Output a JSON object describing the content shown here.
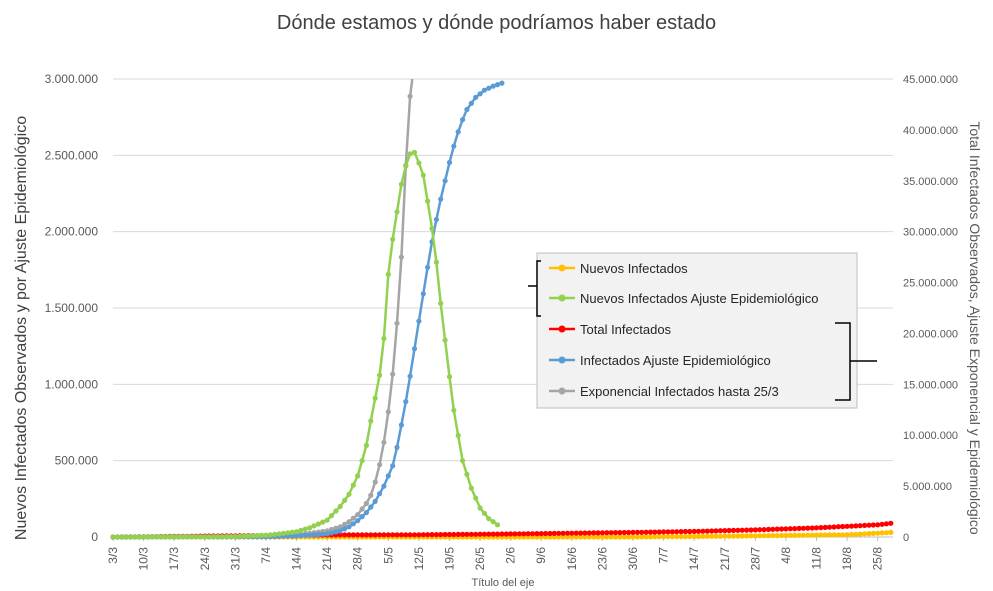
{
  "chart_data": {
    "type": "line",
    "title": "Dónde estamos y dónde podríamos haber estado",
    "xlabel": "Título del eje",
    "ylabel_left": "Nuevos Infectados Observados y por Ajuste Epidemiológico",
    "ylabel_right": "Total Infectados Observados, Ajuste Exponencial y Epidemiológico",
    "x_ticks": [
      "3/3",
      "10/3",
      "17/3",
      "24/3",
      "31/3",
      "7/4",
      "14/4",
      "21/4",
      "28/4",
      "5/5",
      "12/5",
      "19/5",
      "26/5",
      "2/6",
      "9/6",
      "16/6",
      "23/6",
      "30/6",
      "7/7",
      "14/7",
      "21/7",
      "28/7",
      "4/8",
      "11/8",
      "18/8",
      "25/8"
    ],
    "x_start": "3/3",
    "ylim_left": [
      0,
      3000000
    ],
    "ylim_right": [
      0,
      45000000
    ],
    "yticks_left": [
      "0",
      "500.000",
      "1.000.000",
      "1.500.000",
      "2.000.000",
      "2.500.000",
      "3.000.000"
    ],
    "yticks_right": [
      "0",
      "5.000.000",
      "10.000.000",
      "15.000.000",
      "20.000.000",
      "25.000.000",
      "30.000.000",
      "35.000.000",
      "40.000.000",
      "45.000.000"
    ],
    "grid": true,
    "legend_position": "center-right",
    "series": [
      {
        "name": "Nuevos Infectados",
        "axis": "left",
        "color": "#FFC000",
        "points": [
          [
            "3/3",
            0
          ],
          [
            "7/4",
            0
          ],
          [
            "21/4",
            0
          ],
          [
            "12/5",
            0
          ],
          [
            "2/6",
            0
          ],
          [
            "30/6",
            0
          ],
          [
            "21/7",
            5000
          ],
          [
            "4/8",
            10000
          ],
          [
            "18/8",
            15000
          ],
          [
            "25/8",
            25000
          ],
          [
            "28/8",
            30000
          ]
        ]
      },
      {
        "name": "Nuevos Infectados Ajuste Epidemiológico",
        "axis": "left",
        "color": "#92D050",
        "points": [
          [
            "3/3",
            0
          ],
          [
            "24/3",
            1000
          ],
          [
            "31/3",
            3000
          ],
          [
            "7/4",
            12000
          ],
          [
            "10/4",
            20000
          ],
          [
            "14/4",
            35000
          ],
          [
            "17/4",
            60000
          ],
          [
            "21/4",
            110000
          ],
          [
            "24/4",
            200000
          ],
          [
            "26/4",
            280000
          ],
          [
            "28/4",
            400000
          ],
          [
            "30/4",
            600000
          ],
          [
            "1/5",
            760000
          ],
          [
            "3/5",
            1060000
          ],
          [
            "4/5",
            1300000
          ],
          [
            "5/5",
            1720000
          ],
          [
            "6/5",
            1950000
          ],
          [
            "7/5",
            2130000
          ],
          [
            "8/5",
            2310000
          ],
          [
            "9/5",
            2430000
          ],
          [
            "10/5",
            2510000
          ],
          [
            "11/5",
            2520000
          ],
          [
            "12/5",
            2450000
          ],
          [
            "13/5",
            2370000
          ],
          [
            "14/5",
            2200000
          ],
          [
            "15/5",
            2020000
          ],
          [
            "16/5",
            1800000
          ],
          [
            "17/5",
            1530000
          ],
          [
            "19/5",
            1050000
          ],
          [
            "20/5",
            830000
          ],
          [
            "22/5",
            500000
          ],
          [
            "24/5",
            320000
          ],
          [
            "26/5",
            190000
          ],
          [
            "28/5",
            120000
          ],
          [
            "30/5",
            80000
          ]
        ]
      },
      {
        "name": "Total Infectados",
        "axis": "right",
        "color": "#FF0000",
        "points": [
          [
            "3/3",
            0
          ],
          [
            "7/4",
            150000
          ],
          [
            "21/4",
            200000
          ],
          [
            "12/5",
            220000
          ],
          [
            "2/6",
            300000
          ],
          [
            "30/6",
            450000
          ],
          [
            "14/7",
            550000
          ],
          [
            "28/7",
            700000
          ],
          [
            "11/8",
            900000
          ],
          [
            "25/8",
            1200000
          ],
          [
            "28/8",
            1350000
          ]
        ]
      },
      {
        "name": "Infectados Ajuste Epidemiológico",
        "axis": "right",
        "color": "#5B9BD5",
        "points": [
          [
            "3/3",
            0
          ],
          [
            "7/4",
            20000
          ],
          [
            "14/4",
            100000
          ],
          [
            "21/4",
            300000
          ],
          [
            "24/4",
            600000
          ],
          [
            "26/4",
            1000000
          ],
          [
            "28/4",
            1600000
          ],
          [
            "30/4",
            2400000
          ],
          [
            "2/5",
            3500000
          ],
          [
            "4/5",
            5000000
          ],
          [
            "6/5",
            7000000
          ],
          [
            "7/5",
            8800000
          ],
          [
            "8/5",
            11000000
          ],
          [
            "9/5",
            13300000
          ],
          [
            "10/5",
            15800000
          ],
          [
            "11/5",
            18500000
          ],
          [
            "12/5",
            21200000
          ],
          [
            "13/5",
            23900000
          ],
          [
            "14/5",
            26500000
          ],
          [
            "15/5",
            29000000
          ],
          [
            "16/5",
            31200000
          ],
          [
            "17/5",
            33200000
          ],
          [
            "18/5",
            35000000
          ],
          [
            "19/5",
            36800000
          ],
          [
            "20/5",
            38400000
          ],
          [
            "21/5",
            39800000
          ],
          [
            "22/5",
            41000000
          ],
          [
            "23/5",
            42000000
          ],
          [
            "25/5",
            43200000
          ],
          [
            "27/5",
            43900000
          ],
          [
            "29/5",
            44300000
          ],
          [
            "31/5",
            44600000
          ]
        ]
      },
      {
        "name": "Exponencial Infectados hasta 25/3",
        "axis": "right",
        "color": "#A5A5A5",
        "points": [
          [
            "3/3",
            0
          ],
          [
            "31/3",
            30000
          ],
          [
            "7/4",
            60000
          ],
          [
            "14/4",
            200000
          ],
          [
            "21/4",
            600000
          ],
          [
            "24/4",
            1000000
          ],
          [
            "26/4",
            1500000
          ],
          [
            "28/4",
            2200000
          ],
          [
            "30/4",
            3300000
          ],
          [
            "1/5",
            4100000
          ],
          [
            "2/5",
            5400000
          ],
          [
            "3/5",
            7100000
          ],
          [
            "4/5",
            9300000
          ],
          [
            "5/5",
            12300000
          ],
          [
            "6/5",
            16000000
          ],
          [
            "7/5",
            21000000
          ],
          [
            "8/5",
            27500000
          ],
          [
            "9/5",
            36500000
          ],
          [
            "10/5",
            43300000
          ],
          [
            "10.5/5",
            46000000
          ]
        ]
      }
    ]
  },
  "legend": {
    "items": [
      {
        "label": "Nuevos Infectados",
        "color": "#FFC000"
      },
      {
        "label": "Nuevos Infectados Ajuste Epidemiológico",
        "color": "#92D050"
      },
      {
        "label": "Total Infectados",
        "color": "#FF0000"
      },
      {
        "label": "Infectados Ajuste Epidemiológico",
        "color": "#5B9BD5"
      },
      {
        "label": "Exponencial Infectados hasta 25/3",
        "color": "#A5A5A5"
      }
    ]
  }
}
